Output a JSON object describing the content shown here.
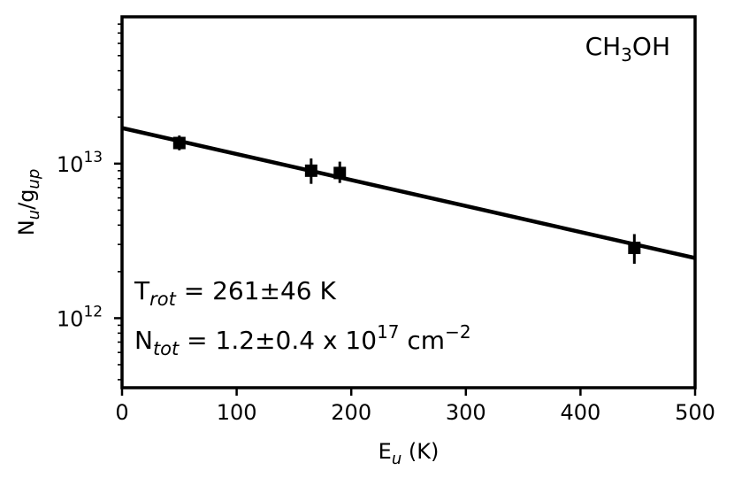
{
  "chart_data": {
    "type": "scatter",
    "title": "",
    "molecule": {
      "base": "CH",
      "sub": "3",
      "rest": "OH"
    },
    "xlabel": {
      "base": "E",
      "sub": "u",
      "rest": " (K)"
    },
    "ylabel": {
      "base": "N",
      "sub1": "u",
      "mid": "/g",
      "sub2": "up"
    },
    "xlim": [
      0,
      500
    ],
    "ylim_log10": [
      11.55,
      13.95
    ],
    "yscale": "log",
    "grid": false,
    "x_ticks": [
      0,
      100,
      200,
      300,
      400,
      500
    ],
    "x_tick_labels": [
      "0",
      "100",
      "200",
      "300",
      "400",
      "500"
    ],
    "y_ticks": [
      {
        "log10": 12,
        "base": "10",
        "exp": "12"
      },
      {
        "log10": 13,
        "base": "10",
        "exp": "13"
      }
    ],
    "points": [
      {
        "x": 50,
        "y": 13600000000000.0,
        "y_low": 12200000000000.0,
        "y_high": 15200000000000.0
      },
      {
        "x": 165,
        "y": 9000000000000.0,
        "y_low": 7400000000000.0,
        "y_high": 10800000000000.0
      },
      {
        "x": 190,
        "y": 8700000000000.0,
        "y_low": 7500000000000.0,
        "y_high": 10300000000000.0
      },
      {
        "x": 447,
        "y": 2850000000000.0,
        "y_low": 2250000000000.0,
        "y_high": 3500000000000.0
      }
    ],
    "fit_line": {
      "x": [
        0,
        500
      ],
      "y": [
        17000000000000.0,
        2450000000000.0
      ]
    },
    "annotations": {
      "trot": {
        "base": "T",
        "sub": "rot",
        "text": " = 261±46 K"
      },
      "ntot": {
        "base": "N",
        "sub": "tot",
        "text": " = 1.2±0.4 x 10",
        "exp": "17",
        "unit": " cm",
        "unit_exp": "−2"
      }
    }
  }
}
